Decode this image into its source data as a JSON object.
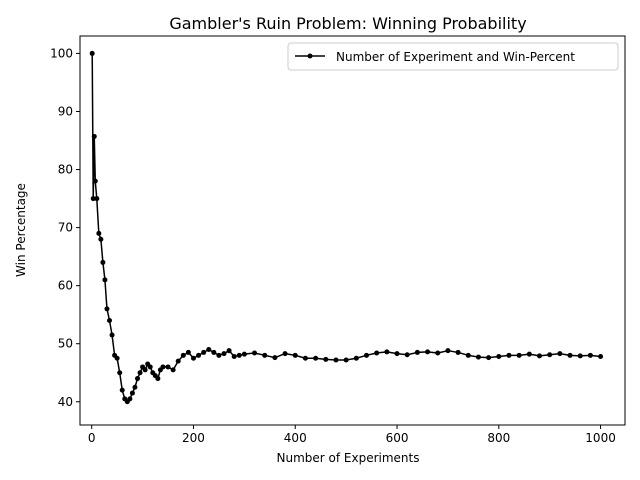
{
  "chart_data": {
    "type": "line",
    "title": "Gambler's Ruin Problem: Winning Probability",
    "xlabel": "Number of Experiments",
    "ylabel": "Win Percentage",
    "xlim": [
      -23,
      1048
    ],
    "ylim": [
      36,
      103
    ],
    "xticks": [
      0,
      200,
      400,
      600,
      800,
      1000
    ],
    "yticks": [
      40,
      50,
      60,
      70,
      80,
      90,
      100
    ],
    "grid": false,
    "legend_position": "top-right",
    "series": [
      {
        "name": "Number of Experiment and Win-Percent",
        "color": "#000000",
        "marker": "point",
        "x": [
          1,
          3,
          5,
          7,
          10,
          14,
          18,
          22,
          26,
          30,
          35,
          40,
          45,
          50,
          55,
          60,
          65,
          70,
          75,
          80,
          85,
          90,
          95,
          100,
          105,
          110,
          115,
          120,
          125,
          130,
          135,
          140,
          150,
          160,
          170,
          180,
          190,
          200,
          210,
          220,
          230,
          240,
          250,
          260,
          270,
          280,
          290,
          300,
          320,
          340,
          360,
          380,
          400,
          420,
          440,
          460,
          480,
          500,
          520,
          540,
          560,
          580,
          600,
          620,
          640,
          660,
          680,
          700,
          720,
          740,
          760,
          780,
          800,
          820,
          840,
          860,
          880,
          900,
          920,
          940,
          960,
          980,
          1000
        ],
        "y": [
          100,
          75,
          85.7,
          78,
          75,
          69,
          68,
          64,
          61,
          56,
          54,
          51.5,
          48,
          47.5,
          45,
          42,
          40.5,
          40,
          40.5,
          41.5,
          42.5,
          44,
          45,
          46,
          45.5,
          46.5,
          46,
          45,
          44.5,
          44,
          45.5,
          46,
          46,
          45.5,
          47,
          48,
          48.5,
          47.5,
          48,
          48.5,
          49,
          48.5,
          48,
          48.3,
          48.8,
          47.8,
          48,
          48.2,
          48.4,
          48,
          47.6,
          48.3,
          48,
          47.5,
          47.5,
          47.3,
          47.2,
          47.2,
          47.5,
          48,
          48.4,
          48.6,
          48.3,
          48.1,
          48.5,
          48.6,
          48.4,
          48.8,
          48.5,
          48,
          47.7,
          47.6,
          47.8,
          48,
          48,
          48.2,
          47.9,
          48.1,
          48.3,
          48,
          47.9,
          48,
          47.8
        ]
      }
    ]
  }
}
